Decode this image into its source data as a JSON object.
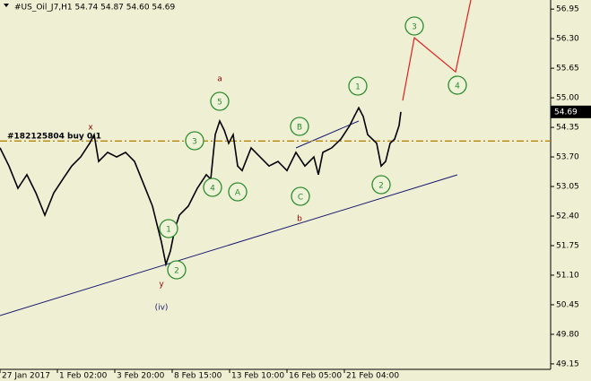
{
  "chart_data": {
    "type": "line",
    "title": "#US_Oil_J7,H1  54.74 54.87 54.60 54.69",
    "x": [
      0,
      10,
      20,
      30,
      40,
      50,
      60,
      70,
      80,
      90,
      100,
      105,
      110,
      120,
      130,
      140,
      150,
      160,
      170,
      175,
      180,
      185,
      190,
      195,
      200,
      210,
      220,
      230,
      235,
      240,
      245,
      250,
      255,
      260,
      265,
      270,
      280,
      290,
      300,
      310,
      320,
      330,
      340,
      350,
      355,
      360,
      370,
      380,
      390,
      395,
      400,
      405,
      410,
      420,
      425,
      430,
      435,
      440,
      445,
      447
    ],
    "series": [
      {
        "color": "#000000",
        "values": [
          53.9,
          53.5,
          53.01,
          53.31,
          52.91,
          52.42,
          52.91,
          53.21,
          53.5,
          53.7,
          54.0,
          54.19,
          53.6,
          53.8,
          53.7,
          53.8,
          53.6,
          53.11,
          52.62,
          52.22,
          51.83,
          51.34,
          51.63,
          52.12,
          52.42,
          52.62,
          53.01,
          53.31,
          53.21,
          54.19,
          54.49,
          54.29,
          54.0,
          54.19,
          53.5,
          53.4,
          53.9,
          53.7,
          53.5,
          53.6,
          53.4,
          53.8,
          53.5,
          53.7,
          53.31,
          53.8,
          53.9,
          54.09,
          54.39,
          54.59,
          54.78,
          54.59,
          54.19,
          54.0,
          53.5,
          53.6,
          54.0,
          54.09,
          54.39,
          54.69
        ]
      }
    ],
    "forecast": {
      "color": "#e02020",
      "x": [
        449,
        462,
        508,
        525
      ],
      "values": [
        54.94,
        56.32,
        55.57,
        57.15
      ]
    },
    "order_level": 54.05,
    "order_label": "#182125804 buy 0.1",
    "last_price": 54.69,
    "xlim": [
      0,
      614
    ],
    "ylim": [
      49.03,
      57.15
    ],
    "xticks": [
      {
        "value": 0,
        "label": "27 Jan 2017"
      },
      {
        "value": 64,
        "label": "1 Feb 02:00"
      },
      {
        "value": 128,
        "label": "3 Feb 20:00"
      },
      {
        "value": 192,
        "label": "8 Feb 15:00"
      },
      {
        "value": 256,
        "label": "13 Feb 10:00"
      },
      {
        "value": 320,
        "label": "16 Feb 05:00"
      },
      {
        "value": 384,
        "label": "21 Feb 04:00"
      }
    ],
    "yticks": [
      56.95,
      {
        "value": 56.3,
        "label": "56.30"
      },
      55.65,
      {
        "value": 55,
        "label": "55.00"
      },
      54.35,
      {
        "value": 53.7,
        "label": "53.70"
      },
      53.05,
      {
        "value": 52.4,
        "label": "52.40"
      },
      51.75,
      {
        "value": 51.1,
        "label": "51.10"
      },
      50.45,
      {
        "value": 49.8,
        "label": "49.80"
      },
      49.15
    ],
    "wave_labels": [
      "3",
      "4",
      "1",
      "2",
      "B",
      "C",
      "A",
      "5",
      "3",
      "4",
      "1",
      "2"
    ],
    "letter_labels": [
      "a",
      "b",
      "x",
      "y",
      "(iv)"
    ]
  }
}
